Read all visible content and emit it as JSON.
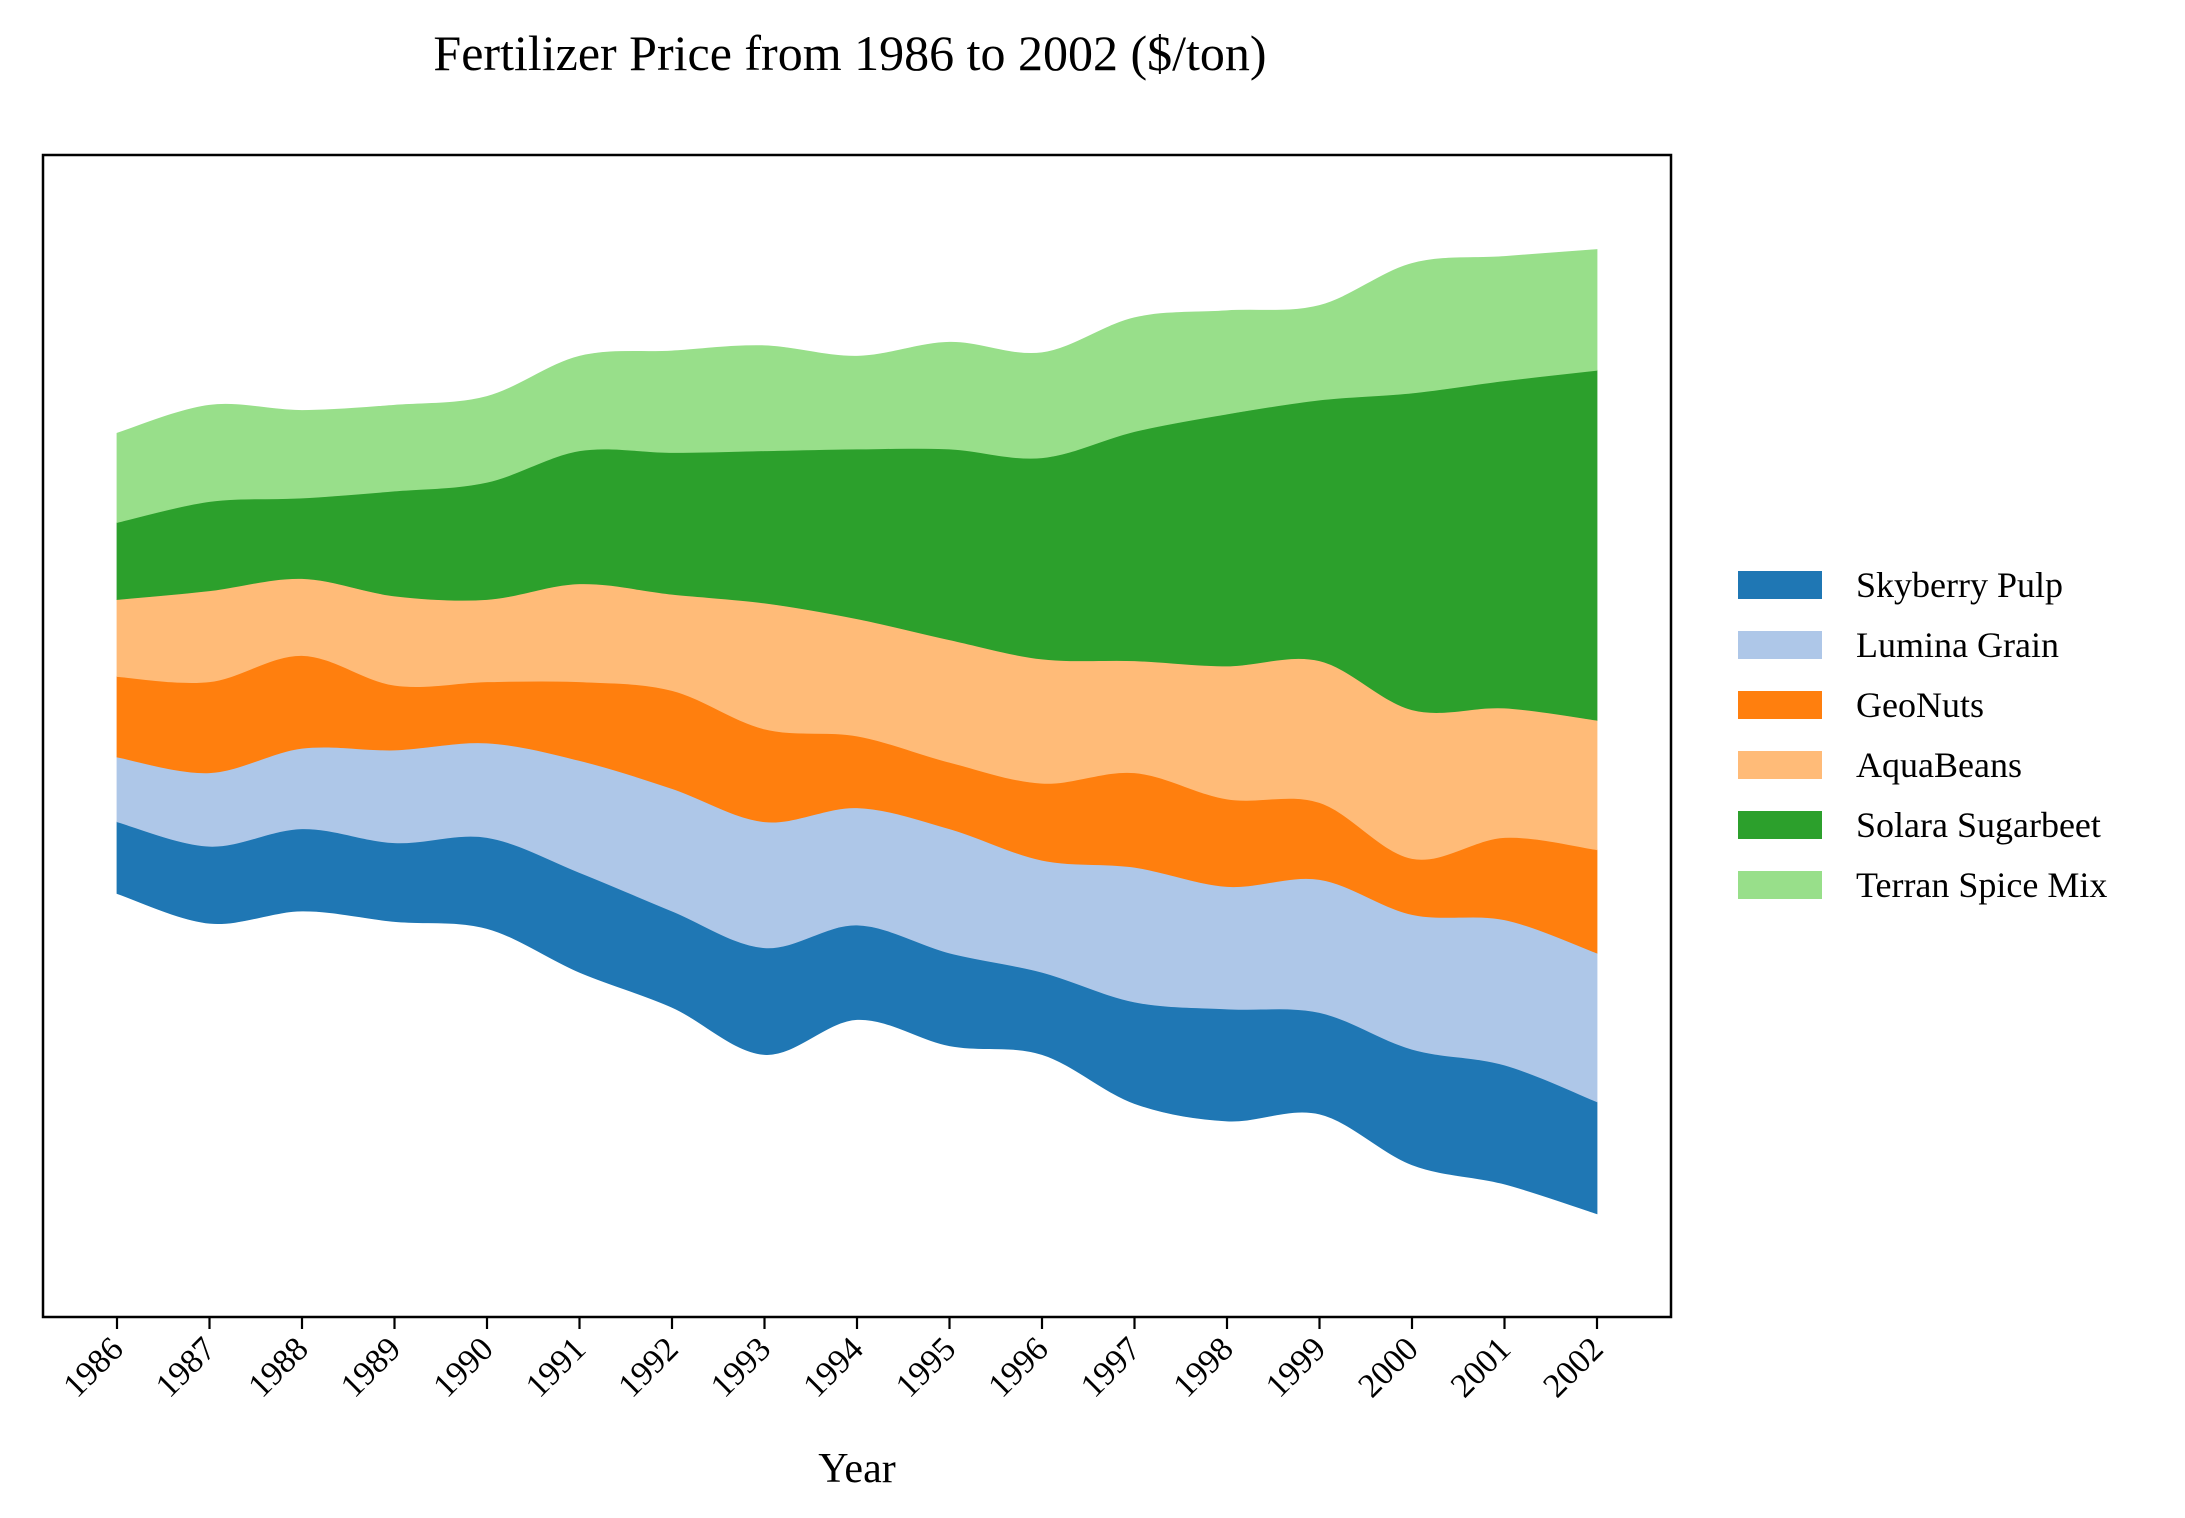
{
  "chart_data": {
    "type": "streamgraph",
    "title": "Fertilizer Price from 1986 to 2002 ($/ton)",
    "xlabel": "Year",
    "ylabel": "",
    "categories": [
      "1986",
      "1987",
      "1988",
      "1989",
      "1990",
      "1991",
      "1992",
      "1993",
      "1994",
      "1995",
      "1996",
      "1997",
      "1998",
      "1999",
      "2000",
      "2001",
      "2002"
    ],
    "baseline": [
      -120,
      -137,
      -130,
      -136,
      -140,
      -165,
      -185,
      -212,
      -192,
      -207,
      -212,
      -240,
      -250,
      -246,
      -275,
      -286,
      -303
    ],
    "series": [
      {
        "name": "Skyberry Pulp",
        "color": "#1f77b4",
        "values": [
          41,
          44,
          47,
          45,
          52,
          57,
          55,
          61,
          54,
          53,
          47,
          58,
          64,
          58,
          66,
          68,
          64
        ]
      },
      {
        "name": "Lumina Grain",
        "color": "#aec7e8",
        "values": [
          37,
          42,
          46,
          53,
          54,
          64,
          70,
          72,
          67,
          71,
          64,
          77,
          70,
          76,
          77,
          83,
          85
        ]
      },
      {
        "name": "GeoNuts",
        "color": "#ff7f0e",
        "values": [
          46,
          52,
          53,
          37,
          35,
          45,
          56,
          53,
          41,
          38,
          44,
          54,
          50,
          44,
          32,
          47,
          59
        ]
      },
      {
        "name": "AquaBeans",
        "color": "#ffbb78",
        "values": [
          44,
          52,
          44,
          51,
          47,
          56,
          55,
          72,
          67,
          70,
          71,
          64,
          76,
          81,
          85,
          74,
          74
        ]
      },
      {
        "name": "Solara Sugarbeet",
        "color": "#2ca02c",
        "values": [
          44,
          51,
          46,
          60,
          67,
          76,
          81,
          87,
          97,
          109,
          115,
          131,
          144,
          149,
          181,
          187,
          200
        ]
      },
      {
        "name": "Terran Spice Mix",
        "color": "#98df8a",
        "values": [
          51,
          55,
          50,
          49,
          49,
          54,
          58,
          60,
          53,
          61,
          60,
          65,
          59,
          54,
          74,
          71,
          69
        ]
      }
    ],
    "ylim": [
      -362,
      302
    ],
    "grid": false,
    "legend_position": "right"
  }
}
